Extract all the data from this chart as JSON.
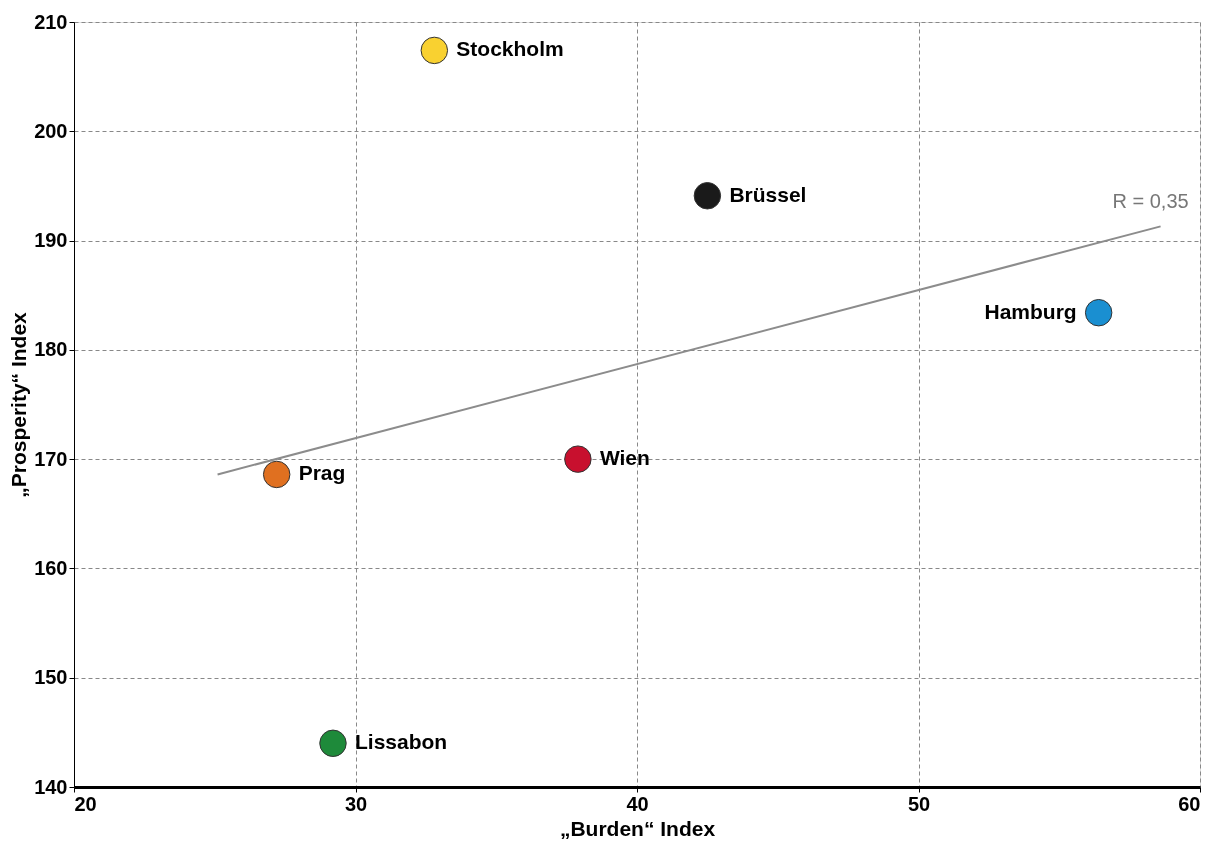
{
  "chart_data": {
    "type": "scatter",
    "xlabel": "„Burden“ Index",
    "ylabel": "„Prosperity“ Index",
    "xlim": [
      20,
      60
    ],
    "xticks": [
      20,
      30,
      40,
      50,
      60
    ],
    "ylim": [
      140,
      210
    ],
    "yticks": [
      140,
      150,
      160,
      170,
      180,
      190,
      200,
      210
    ],
    "grid": true,
    "marker": "circle",
    "series": [
      {
        "name": "Stockholm",
        "color": "#f9d130",
        "x": [
          32.8
        ],
        "values": [
          207.4
        ]
      },
      {
        "name": "Brüssel",
        "color": "#1a1a1a",
        "x": [
          42.5
        ],
        "values": [
          194.1
        ]
      },
      {
        "name": "Hamburg",
        "color": "#1a8fd1",
        "x": [
          56.4
        ],
        "values": [
          183.4
        ]
      },
      {
        "name": "Wien",
        "color": "#c8102e",
        "x": [
          37.9
        ],
        "values": [
          170.0
        ]
      },
      {
        "name": "Prag",
        "color": "#e07020",
        "x": [
          27.2
        ],
        "values": [
          168.6
        ]
      },
      {
        "name": "Lissabon",
        "color": "#1e8a3a",
        "x": [
          29.2
        ],
        "values": [
          144.0
        ]
      },
      {
        "type": "line",
        "marker": "none",
        "color": "#8c8c8c",
        "x": [
          25.1,
          58.6
        ],
        "values": [
          168.6,
          191.3
        ]
      }
    ],
    "annotations": [
      "R = 0,35"
    ]
  }
}
